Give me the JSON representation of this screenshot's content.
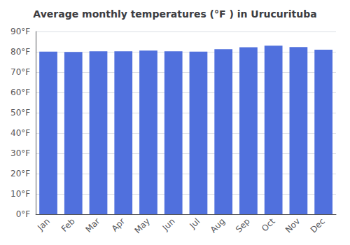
{
  "chart_data": {
    "type": "bar",
    "title": "Average monthly temperatures (°F ) in Urucurituba",
    "categories": [
      "Jan",
      "Feb",
      "Mar",
      "Apr",
      "May",
      "Jun",
      "Jul",
      "Aug",
      "Sep",
      "Oct",
      "Nov",
      "Dec"
    ],
    "values": [
      80.1,
      79.9,
      80.3,
      80.3,
      80.6,
      80.3,
      80.1,
      81.3,
      82.2,
      83.0,
      82.3,
      81.0
    ],
    "ylim": [
      0,
      90
    ],
    "yticks": [
      {
        "value": 0,
        "label": "0°F"
      },
      {
        "value": 10,
        "label": "10°F"
      },
      {
        "value": 20,
        "label": "20°F"
      },
      {
        "value": 30,
        "label": "30°F"
      },
      {
        "value": 40,
        "label": "40°F"
      },
      {
        "value": 50,
        "label": "50°F"
      },
      {
        "value": 60,
        "label": "60°F"
      },
      {
        "value": 70,
        "label": "70°F"
      },
      {
        "value": 80,
        "label": "80°F"
      },
      {
        "value": 90,
        "label": "90°F"
      }
    ],
    "grid": true
  }
}
